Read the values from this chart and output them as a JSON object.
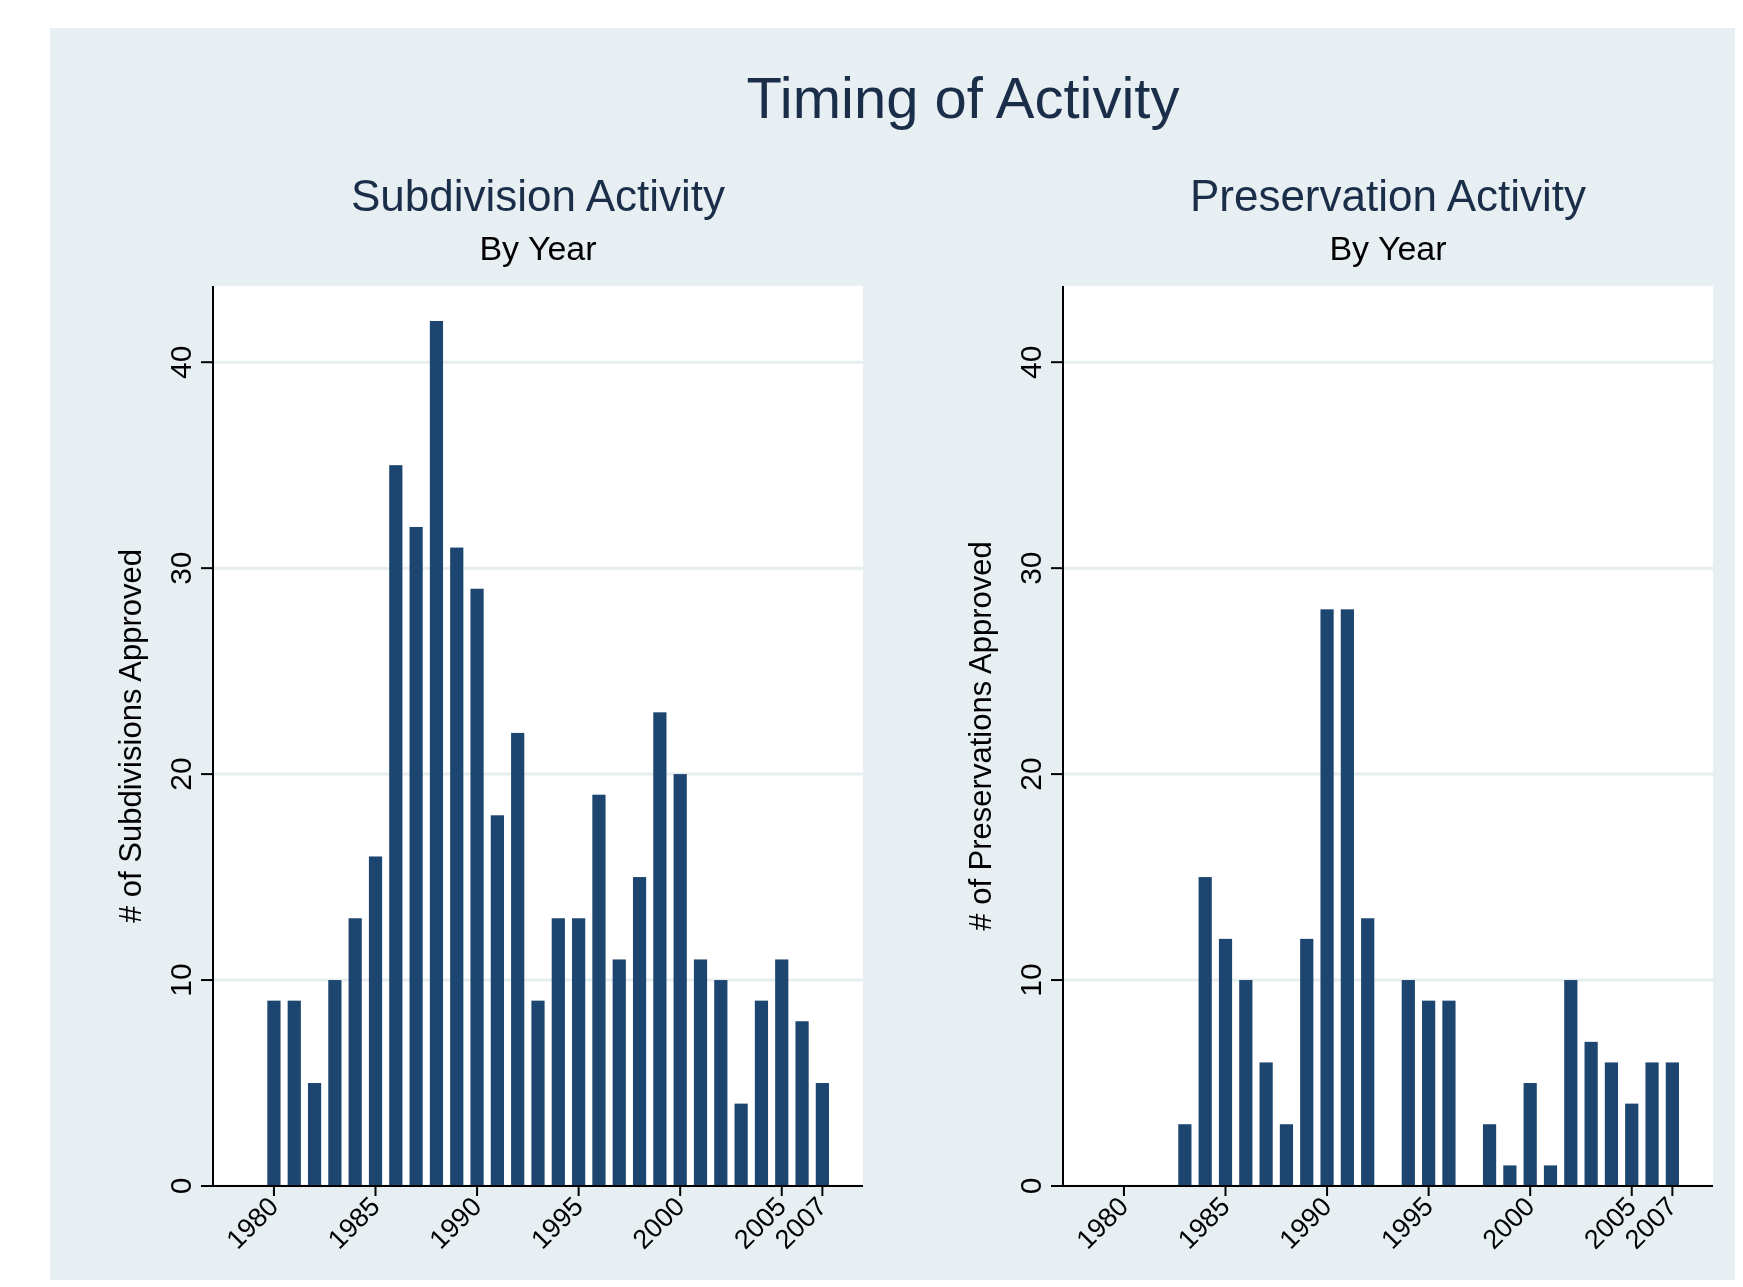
{
  "chart_data": [
    {
      "type": "bar",
      "annotations": [
        "Timing of Activity"
      ],
      "title": "Subdivision Activity",
      "subtitle": "By Year",
      "ylabel": "# of Subdivisions Approved",
      "x": [
        1980,
        1981,
        1982,
        1983,
        1984,
        1985,
        1986,
        1987,
        1988,
        1989,
        1990,
        1991,
        1992,
        1993,
        1994,
        1995,
        1996,
        1997,
        1998,
        1999,
        2000,
        2001,
        2002,
        2003,
        2004,
        2005,
        2006,
        2007
      ],
      "values": [
        9,
        9,
        5,
        10,
        13,
        16,
        35,
        32,
        42,
        31,
        29,
        18,
        22,
        9,
        13,
        13,
        19,
        11,
        15,
        23,
        20,
        11,
        10,
        4,
        9,
        11,
        8,
        5
      ],
      "color": "#1c4570",
      "xlim": [
        1977,
        2009
      ],
      "xticks": [
        1980,
        1985,
        1990,
        1995,
        2000,
        2005,
        2007
      ],
      "ylim": [
        0,
        43.7
      ],
      "yticks": [
        0,
        10,
        20,
        30,
        40
      ],
      "grid": "y"
    },
    {
      "type": "bar",
      "title": "Preservation Activity",
      "subtitle": "By Year",
      "ylabel": "# of Preservations Approved",
      "x": [
        1983,
        1984,
        1985,
        1986,
        1987,
        1988,
        1989,
        1990,
        1991,
        1992,
        1994,
        1995,
        1996,
        1998,
        1999,
        2000,
        2001,
        2002,
        2003,
        2004,
        2005,
        2006,
        2007
      ],
      "values": [
        3,
        15,
        12,
        10,
        6,
        3,
        12,
        28,
        28,
        13,
        10,
        9,
        9,
        3,
        1,
        5,
        1,
        10,
        7,
        6,
        4,
        6,
        6
      ],
      "color": "#1c4570",
      "xlim": [
        1977,
        2009
      ],
      "xticks": [
        1980,
        1985,
        1990,
        1995,
        2000,
        2005,
        2007
      ],
      "ylim": [
        0,
        43.7
      ],
      "yticks": [
        0,
        10,
        20,
        30,
        40
      ],
      "grid": "y"
    }
  ]
}
